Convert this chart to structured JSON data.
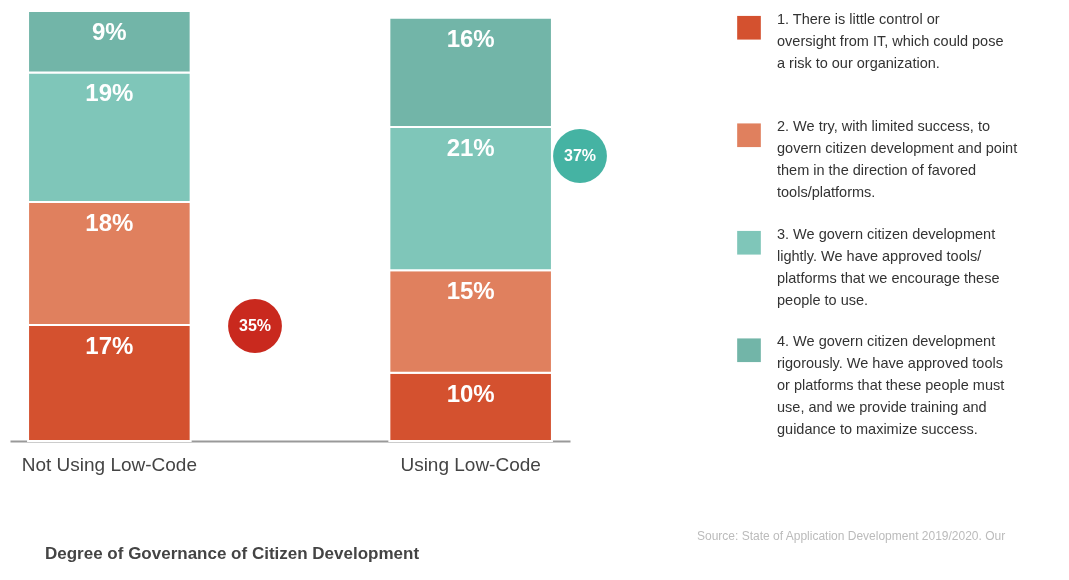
{
  "chart_data": {
    "type": "bar",
    "stacked": true,
    "legend": "right",
    "title": "Degree of Governance of Citizen Development",
    "categories": [
      "Not Using Low-Code",
      "Using Low-Code"
    ],
    "series": [
      {
        "name": "1. There is little control or oversight from IT, which could pose a risk to our organization.",
        "color": "#d4512f",
        "values": [
          17,
          10
        ],
        "value_labels": [
          "17%",
          "10%"
        ]
      },
      {
        "name": "2. We try, with limited success, to govern citizen development and point them in the direction of favored tools/platforms.",
        "color": "#e0805e",
        "values": [
          18,
          15
        ],
        "value_labels": [
          "18%",
          "15%"
        ]
      },
      {
        "name": "3. We govern citizen development lightly. We have approved tools/ platforms that we encourage these people to use.",
        "color": "#7fc6b9",
        "values": [
          19,
          21
        ],
        "value_labels": [
          "19%",
          "21%"
        ]
      },
      {
        "name": "4. We govern citizen development rigorously. We have approved tools or platforms that these people must use, and we provide training and guidance to maximize success.",
        "color": "#72b5a8",
        "values": [
          9,
          16
        ],
        "value_labels": [
          "9%",
          "16%"
        ]
      }
    ],
    "annotations": [
      "35%",
      "37%",
      "Source: State of Application Development 2019/2020. Our"
    ]
  }
}
